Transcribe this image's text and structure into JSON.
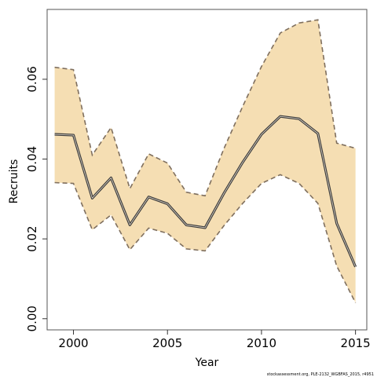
{
  "chart_data": {
    "type": "area",
    "xlabel": "Year",
    "ylabel": "Recruits",
    "xlim": [
      1998.6,
      2015.6
    ],
    "ylim": [
      -0.0028,
      0.0775
    ],
    "x_ticks": [
      2000,
      2005,
      2010,
      2015
    ],
    "y_ticks": [
      0.0,
      0.02,
      0.04,
      0.06
    ],
    "y_tick_labels": [
      "0.00",
      "0.02",
      "0.04",
      "0.06"
    ],
    "grid": false,
    "x": [
      1999,
      2000,
      2001,
      2002,
      2003,
      2004,
      2005,
      2006,
      2007,
      2008,
      2009,
      2010,
      2011,
      2012,
      2013,
      2014,
      2015
    ],
    "series": [
      {
        "role": "estimate",
        "values": [
          0.0462,
          0.046,
          0.0302,
          0.0353,
          0.0235,
          0.0305,
          0.0288,
          0.0235,
          0.0228,
          0.0314,
          0.0392,
          0.0462,
          0.0507,
          0.0501,
          0.0464,
          0.0239,
          0.013
        ]
      },
      {
        "role": "upper",
        "values": [
          0.063,
          0.0624,
          0.041,
          0.0479,
          0.0326,
          0.0413,
          0.039,
          0.0317,
          0.0308,
          0.0426,
          0.0532,
          0.0632,
          0.0716,
          0.0741,
          0.0749,
          0.044,
          0.0427
        ]
      },
      {
        "role": "lower",
        "values": [
          0.0341,
          0.0339,
          0.0223,
          0.026,
          0.0173,
          0.0227,
          0.0214,
          0.0175,
          0.017,
          0.0233,
          0.0289,
          0.0339,
          0.0361,
          0.0339,
          0.0289,
          0.0132,
          0.004
        ]
      }
    ],
    "colors": {
      "band_fill": "#f5deb3",
      "band_edge": "#7f6f5e",
      "line": "#3a3a3a",
      "frame": "#555555"
    },
    "footer_note": "stockassessment.org, PLE-2132_WGBFAS_2015, r4951"
  }
}
